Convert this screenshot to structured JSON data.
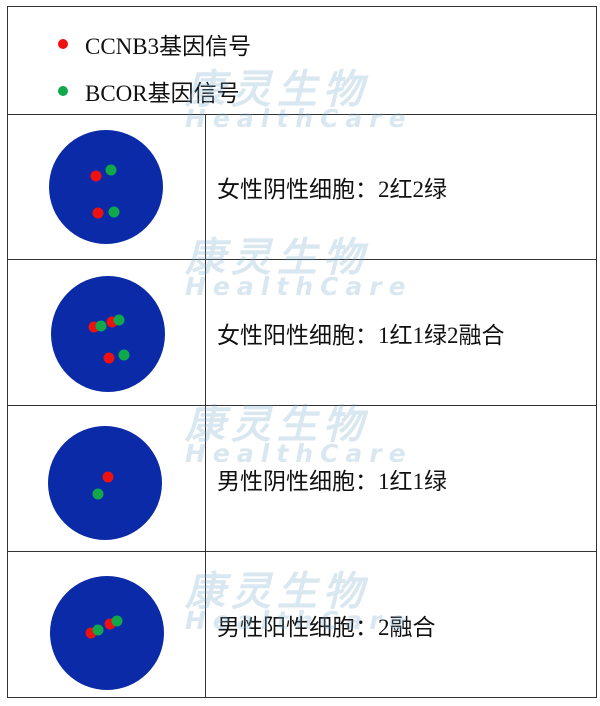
{
  "colors": {
    "cell": "#0a2aa8",
    "red": "#ee1111",
    "green": "#10a84a",
    "watermark": "#a8c8dc"
  },
  "legend": [
    {
      "label": "CCNB3基因信号",
      "color": "red"
    },
    {
      "label": "BCOR基因信号",
      "color": "green"
    }
  ],
  "rows": [
    {
      "label": "女性阴性细胞：2红2绿",
      "signals": "2 red, 2 green separate"
    },
    {
      "label": "女性阳性细胞：1红1绿2融合",
      "signals": "1 red, 1 green, 2 fused"
    },
    {
      "label": "男性阴性细胞：1红1绿",
      "signals": "1 red, 1 green separate"
    },
    {
      "label": "男性阳性细胞：2融合",
      "signals": "2 fused"
    }
  ],
  "watermark": {
    "cn": "康灵生物",
    "en": "HealthCare"
  }
}
